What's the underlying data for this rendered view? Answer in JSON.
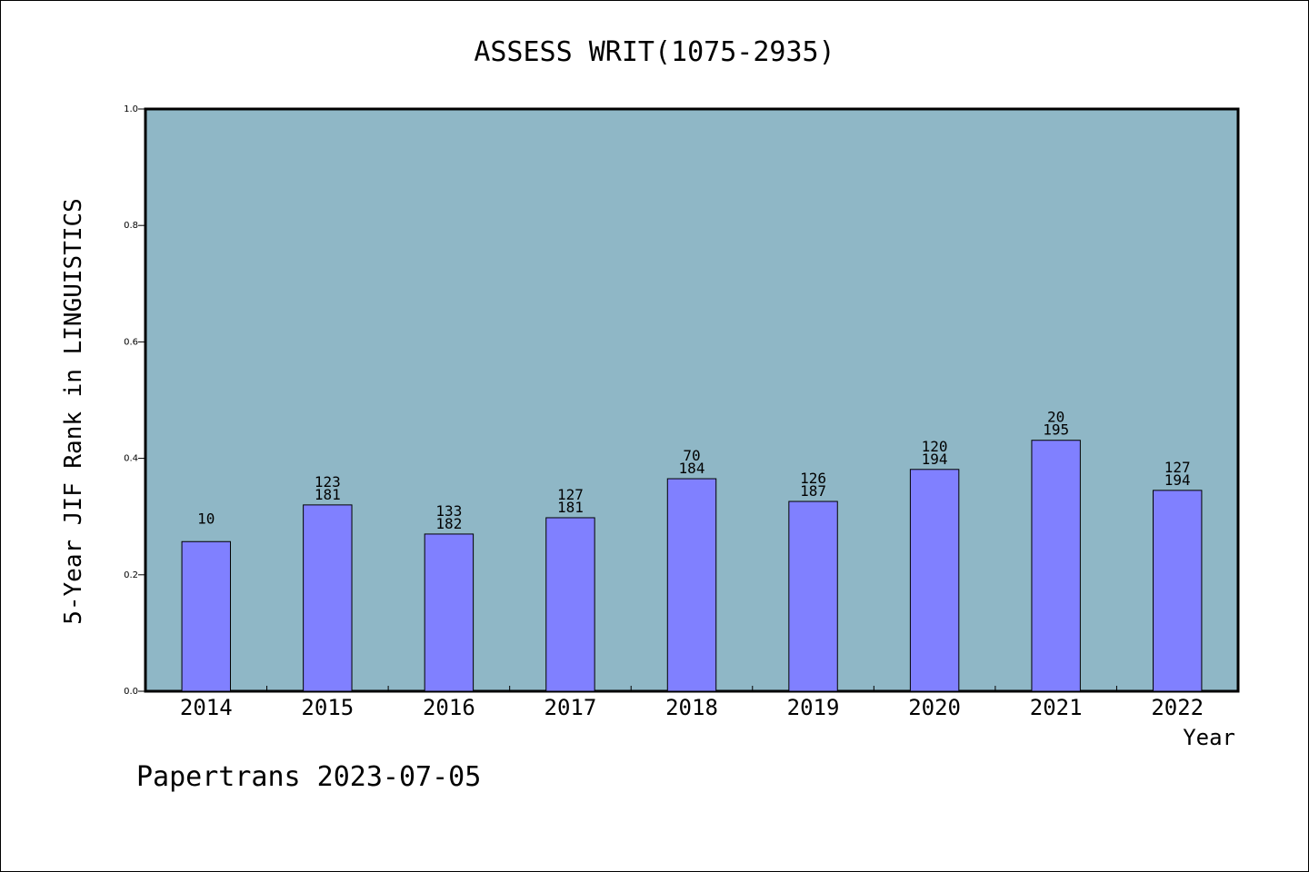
{
  "chart_data": {
    "type": "bar",
    "title": "ASSESS WRIT(1075-2935)",
    "xlabel": "Year",
    "ylabel": "5-Year JIF Rank in LINGUISTICS",
    "ylim": [
      0,
      1.0
    ],
    "yticks": [
      "0.0",
      "0.2",
      "0.4",
      "0.6",
      "0.8",
      "1.0"
    ],
    "grid": false,
    "categories": [
      "2014",
      "2015",
      "2016",
      "2017",
      "2018",
      "2019",
      "2020",
      "2021",
      "2022"
    ],
    "values": [
      0.257,
      0.32,
      0.27,
      0.298,
      0.365,
      0.326,
      0.381,
      0.431,
      0.345
    ],
    "bar_labels": [
      [
        "10"
      ],
      [
        "123",
        "181"
      ],
      [
        "133",
        "182"
      ],
      [
        "127",
        "181"
      ],
      [
        "70",
        "184"
      ],
      [
        "126",
        "187"
      ],
      [
        "120",
        "194"
      ],
      [
        "20",
        "195"
      ],
      [
        "127",
        "194"
      ]
    ],
    "colors": {
      "plot_bg": "#8fb7c6",
      "bar": "#8080ff",
      "bar_edge": "#000000"
    }
  },
  "footer": {
    "text": "Papertrans 2023-07-05"
  }
}
